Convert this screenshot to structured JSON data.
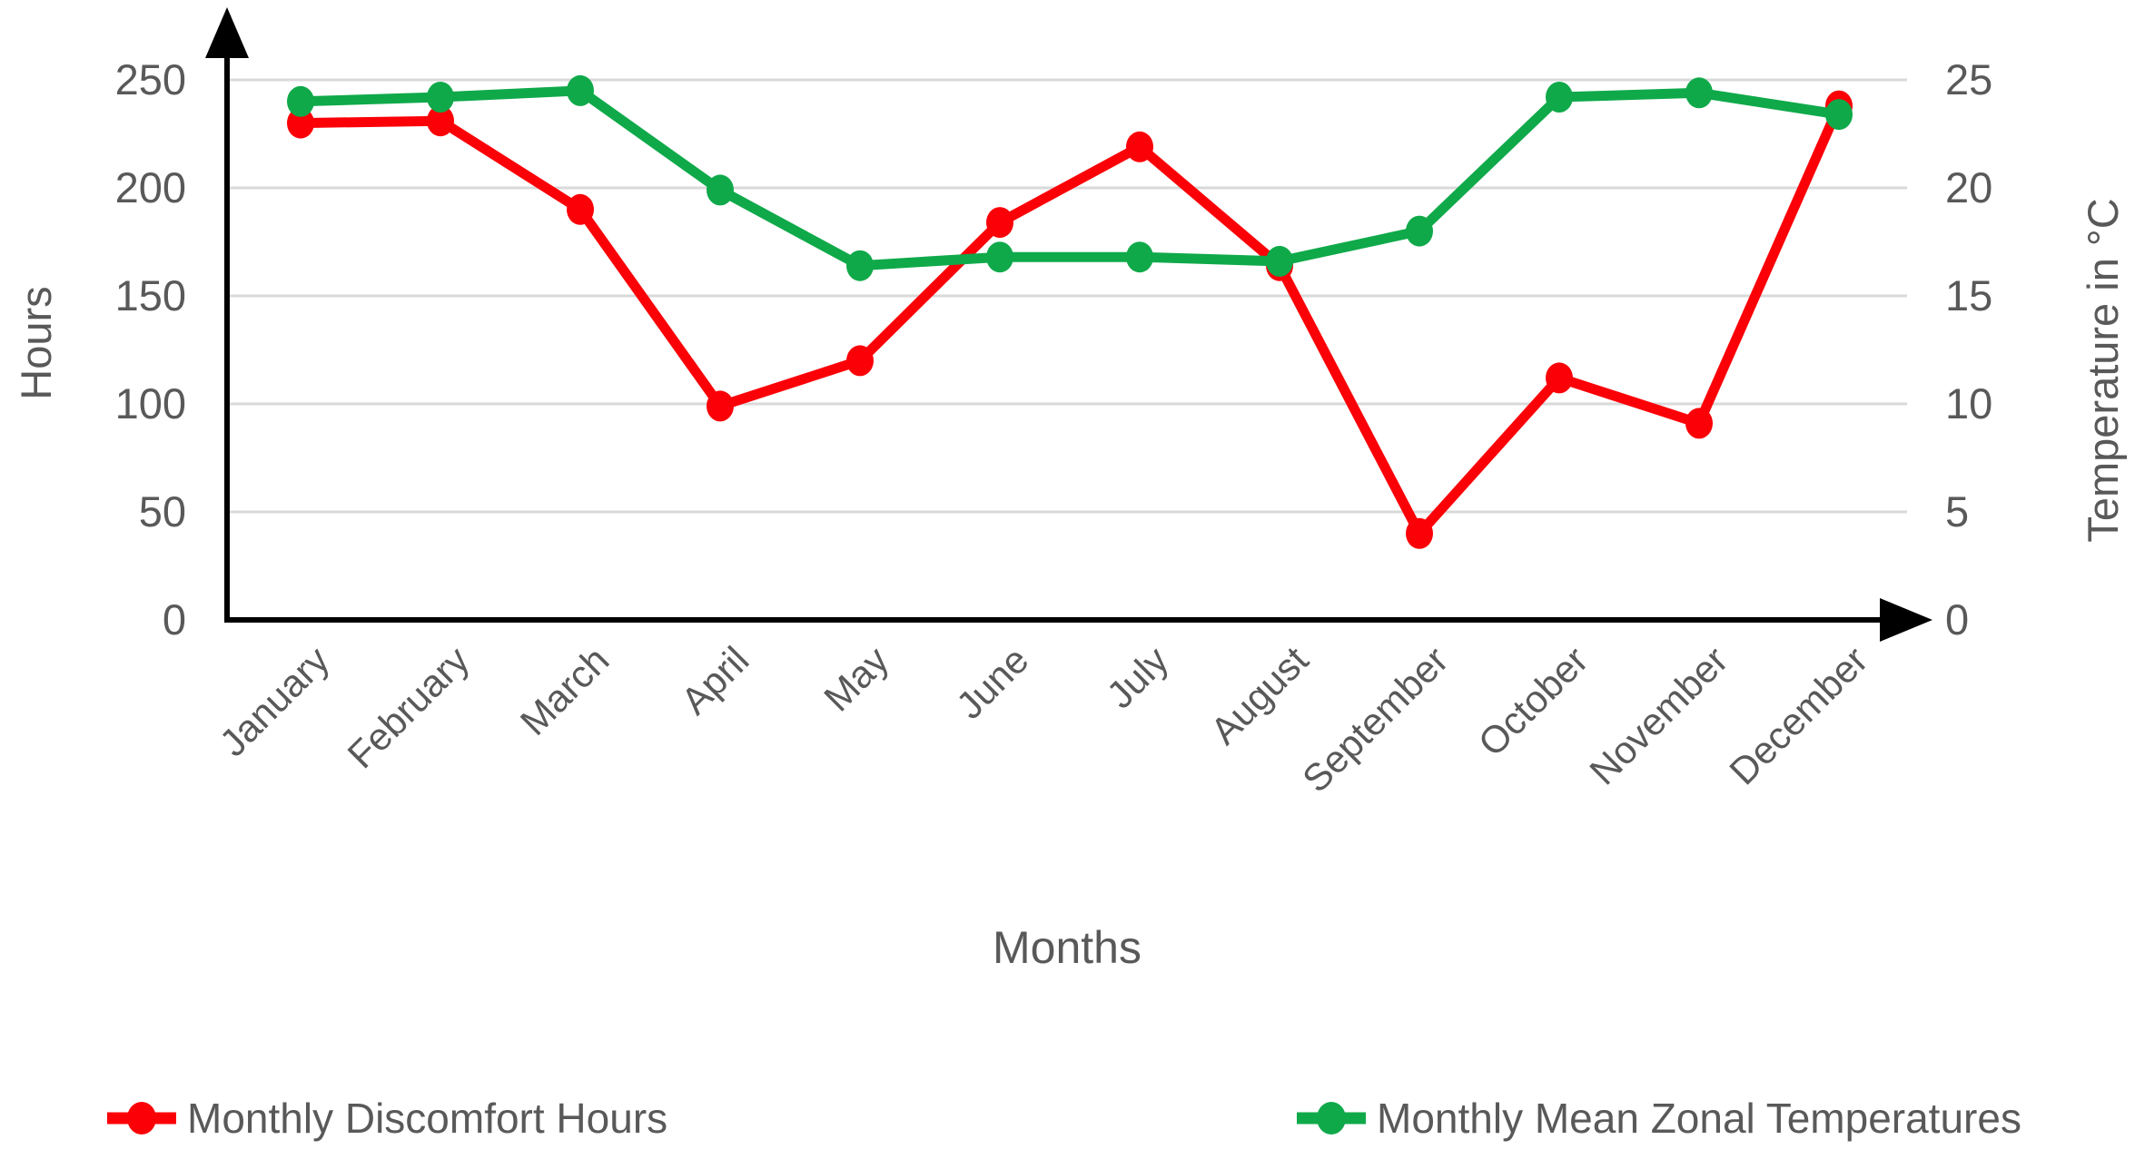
{
  "chart": {
    "left_axis": {
      "title": "Hours",
      "ticks": [
        "0",
        "50",
        "100",
        "150",
        "200",
        "250"
      ]
    },
    "right_axis": {
      "title": "Temperature in °C",
      "ticks": [
        "0",
        "5",
        "10",
        "15",
        "20",
        "25"
      ]
    },
    "x_axis": {
      "title": "Months"
    },
    "legend": [
      {
        "label": "Monthly Discomfort Hours",
        "color": "#FB0007"
      },
      {
        "label": "Monthly Mean Zonal Temperatures",
        "color": "#0FA94A"
      }
    ]
  },
  "chart_data": {
    "type": "line",
    "categories": [
      "January",
      "February",
      "March",
      "April",
      "May",
      "June",
      "July",
      "August",
      "September",
      "October",
      "November",
      "December"
    ],
    "series": [
      {
        "name": "Monthly Discomfort Hours",
        "axis": "left",
        "color": "#FB0007",
        "values": [
          230,
          231,
          190,
          99,
          120,
          184,
          219,
          164,
          40,
          112,
          91,
          238
        ]
      },
      {
        "name": "Monthly Mean Zonal Temperatures",
        "axis": "right",
        "color": "#0FA94A",
        "values": [
          24.0,
          24.2,
          24.5,
          19.9,
          16.4,
          16.8,
          16.8,
          16.6,
          18.0,
          24.2,
          24.4,
          23.4
        ]
      }
    ],
    "left_ylabel": "Hours",
    "right_ylabel": "Temperature in °C",
    "xlabel": "Months",
    "left_ylim": [
      0,
      250
    ],
    "right_ylim": [
      0,
      25
    ],
    "left_ticks": [
      0,
      50,
      100,
      150,
      200,
      250
    ],
    "right_ticks": [
      0,
      5,
      10,
      15,
      20,
      25
    ],
    "grid": true,
    "legend_position": "bottom",
    "colors": {
      "grid": "#D9D9D9",
      "axis": "#000000",
      "text": "#595959"
    }
  }
}
